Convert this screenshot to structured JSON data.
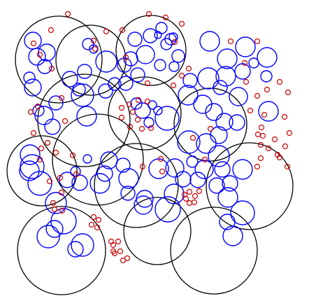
{
  "colors": {
    "background": "#ffffff",
    "large": "#000000",
    "medium": "#0000ff",
    "small": "#cc0000"
  }
}
